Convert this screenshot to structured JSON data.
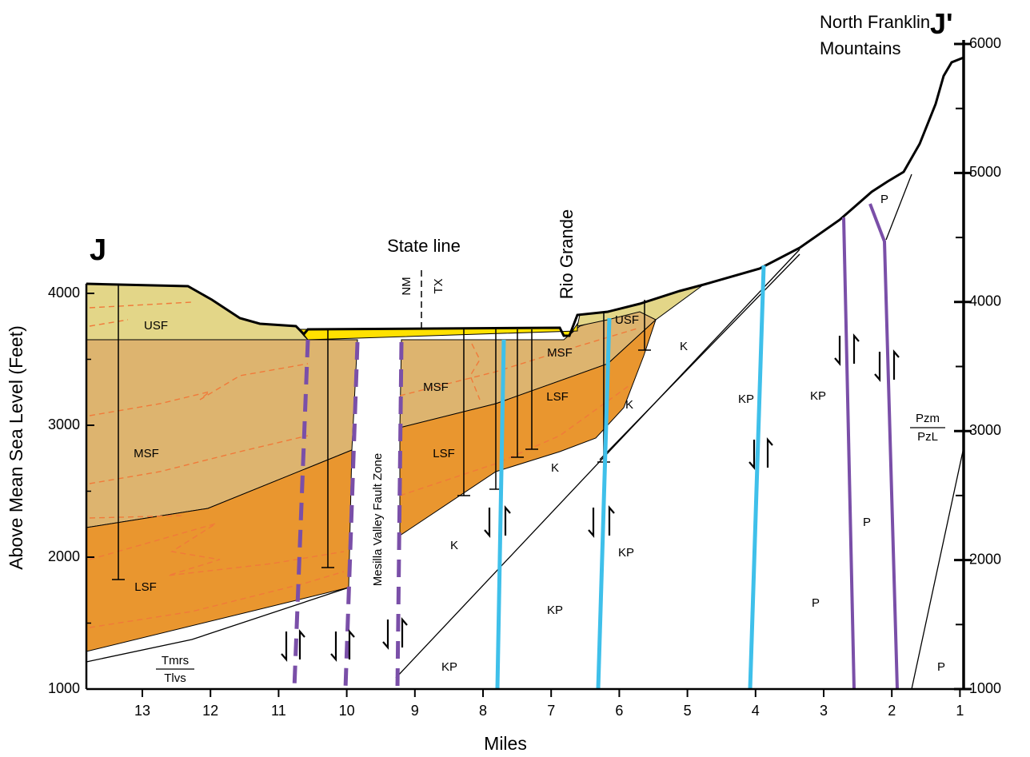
{
  "section_start": "J",
  "section_end": "J'",
  "mountains": [
    "North Franklin",
    "Mountains"
  ],
  "state_line": "State line",
  "states": [
    "NM",
    "TX"
  ],
  "river": "Rio Grande",
  "fault_zone": "Mesilla Valley Fault Zone",
  "y_axis_title": "Above Mean Sea Level (Feet)",
  "x_axis_title": "Miles",
  "left_ticks": [
    "4000",
    "3000",
    "2000",
    "1000"
  ],
  "right_ticks": [
    "6000",
    "5000",
    "4000",
    "3000",
    "2000",
    "1000"
  ],
  "x_ticks": [
    "13",
    "12",
    "11",
    "10",
    "9",
    "8",
    "7",
    "6",
    "5",
    "4",
    "3",
    "2",
    "1"
  ],
  "units": [
    "USF",
    "MSF",
    "LSF",
    "MSF",
    "LSF",
    "MSF",
    "LSF",
    "USF",
    "K",
    "K",
    "K",
    "K",
    "KP",
    "KP",
    "KP",
    "KP",
    "KP",
    "P",
    "P",
    "P",
    "P"
  ],
  "contacts": [
    {
      "upper": "Pzm",
      "lower": "PzL"
    },
    {
      "upper": "Tmrs",
      "lower": "Tlvs"
    }
  ]
}
